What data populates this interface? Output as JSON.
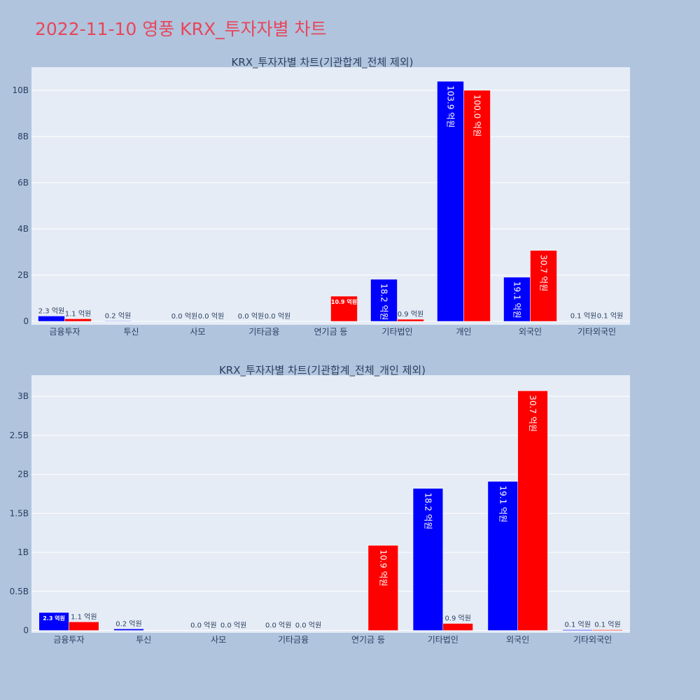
{
  "page": {
    "title": "2022-11-10 영풍 KRX_투자자별 차트"
  },
  "colors": {
    "background": "#b0c4de",
    "plot_bg": "#e5ecf6",
    "title": "#e8465a",
    "buy": "#0000ff",
    "sell": "#ff0000",
    "text": "#2a3f5f"
  },
  "chart_data": [
    {
      "type": "bar",
      "title": "KRX_투자자별 차트(기관합계_전체 제외)",
      "categories": [
        "금융투자",
        "투신",
        "사모",
        "기타금융",
        "연기금 등",
        "기타법인",
        "개인",
        "외국인",
        "기타외국인"
      ],
      "series": [
        {
          "color": "#0000ff",
          "values": [
            230000000,
            20000000,
            0,
            0,
            0,
            1820000000,
            10390000000,
            1910000000,
            10000000
          ],
          "labels": [
            "2.3 억원",
            "0.2 억원",
            "0.0 억원",
            "0.0 억원",
            "",
            "18.2 억원",
            "103.9 억원",
            "19.1 억원",
            "0.1 억원"
          ]
        },
        {
          "color": "#ff0000",
          "values": [
            110000000,
            0,
            0,
            0,
            1090000000,
            90000000,
            10000000000,
            3070000000,
            10000000
          ],
          "labels": [
            "1.1 억원",
            "",
            "0.0 억원",
            "0.0 억원",
            "10.9 억원",
            "0.9 억원",
            "100.0 억원",
            "30.7 억원",
            "0.1 억원"
          ]
        }
      ],
      "ylim": [
        -150000000,
        11000000000
      ],
      "yticks": [
        0,
        2000000000,
        4000000000,
        6000000000,
        8000000000,
        10000000000
      ],
      "ytick_labels": [
        "0",
        "2B",
        "4B",
        "6B",
        "8B",
        "10B"
      ],
      "grid": true
    },
    {
      "type": "bar",
      "title": "KRX_투자자별 차트(기관합계_전체_개인 제외)",
      "categories": [
        "금융투자",
        "투신",
        "사모",
        "기타금융",
        "연기금 등",
        "기타법인",
        "외국인",
        "기타외국인"
      ],
      "series": [
        {
          "color": "#0000ff",
          "values": [
            230000000,
            20000000,
            0,
            0,
            0,
            1820000000,
            1910000000,
            10000000
          ],
          "labels": [
            "2.3 억원",
            "0.2 억원",
            "0.0 억원",
            "0.0 억원",
            "",
            "18.2 억원",
            "19.1 억원",
            "0.1 억원"
          ]
        },
        {
          "color": "#ff0000",
          "values": [
            110000000,
            0,
            0,
            0,
            1090000000,
            90000000,
            3070000000,
            10000000
          ],
          "labels": [
            "1.1 억원",
            "",
            "0.0 억원",
            "0.0 억원",
            "10.9 억원",
            "0.9 억원",
            "30.7 억원",
            "0.1 억원"
          ]
        }
      ],
      "ylim": [
        -30000000,
        3270000000
      ],
      "yticks": [
        0,
        500000000,
        1000000000,
        1500000000,
        2000000000,
        2500000000,
        3000000000
      ],
      "ytick_labels": [
        "0",
        "0.5B",
        "1B",
        "1.5B",
        "2B",
        "2.5B",
        "3B"
      ],
      "grid": true
    }
  ]
}
